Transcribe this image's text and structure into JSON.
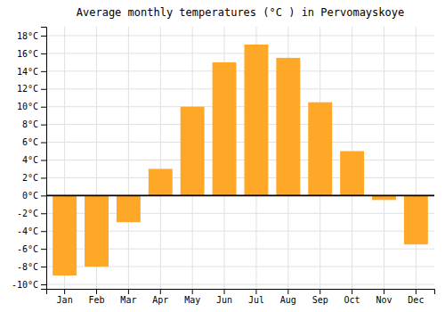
{
  "chart_data": {
    "type": "bar",
    "title": "Average monthly temperatures (°C ) in Pervomayskoye",
    "categories": [
      "Jan",
      "Feb",
      "Mar",
      "Apr",
      "May",
      "Jun",
      "Jul",
      "Aug",
      "Sep",
      "Oct",
      "Nov",
      "Dec"
    ],
    "values": [
      -9,
      -8,
      -3,
      3,
      10,
      15,
      17,
      15.5,
      10.5,
      5,
      -0.5,
      -5.5
    ],
    "color": "#FFA726",
    "ylim": [
      -10.5,
      19
    ],
    "yticks": [
      {
        "value": -10,
        "label": "-10°C"
      },
      {
        "value": -8,
        "label": "-8°C"
      },
      {
        "value": -6,
        "label": "-6°C"
      },
      {
        "value": -4,
        "label": "-4°C"
      },
      {
        "value": -2,
        "label": "-2°C"
      },
      {
        "value": 0,
        "label": "0°C"
      },
      {
        "value": 2,
        "label": "2°C"
      },
      {
        "value": 4,
        "label": "4°C"
      },
      {
        "value": 6,
        "label": "6°C"
      },
      {
        "value": 8,
        "label": "8°C"
      },
      {
        "value": 10,
        "label": "10°C"
      },
      {
        "value": 12,
        "label": "12°C"
      },
      {
        "value": 14,
        "label": "14°C"
      },
      {
        "value": 16,
        "label": "16°C"
      },
      {
        "value": 18,
        "label": "18°C"
      }
    ],
    "grid": true
  }
}
